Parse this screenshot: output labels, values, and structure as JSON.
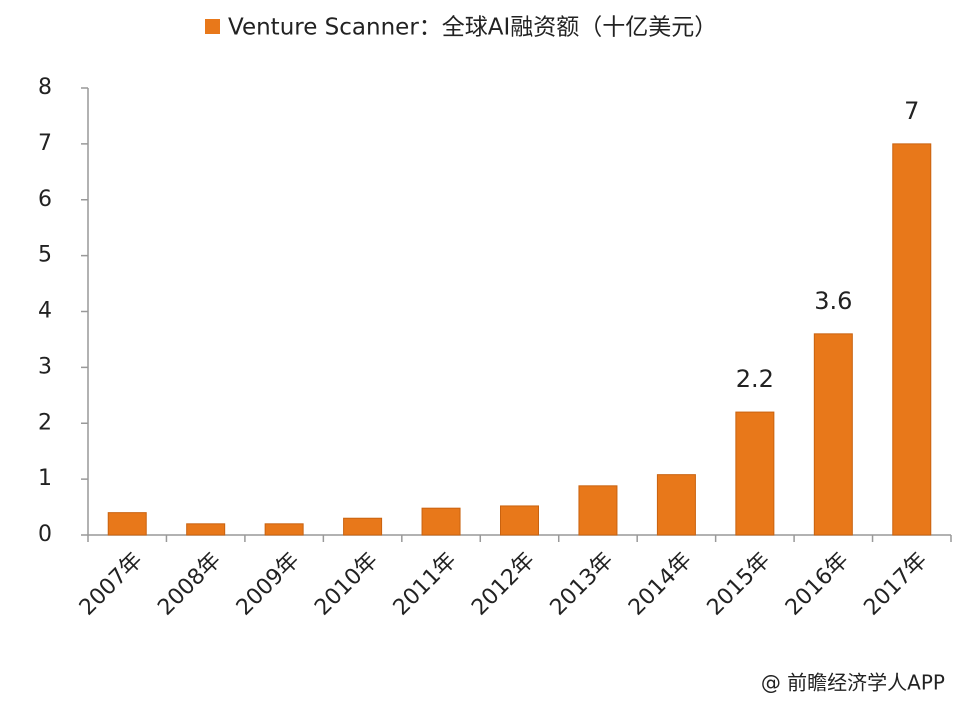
{
  "chart_data": {
    "type": "bar",
    "categories": [
      "2007年",
      "2008年",
      "2009年",
      "2010年",
      "2011年",
      "2012年",
      "2013年",
      "2014年",
      "2015年",
      "2016年",
      "2017年"
    ],
    "series": [
      {
        "name": "Venture Scanner：全球AI融资额（十亿美元）",
        "color": "#e8781a",
        "values": [
          0.4,
          0.2,
          0.2,
          0.3,
          0.48,
          0.52,
          0.88,
          1.08,
          2.2,
          3.6,
          7
        ],
        "value_labels": [
          null,
          null,
          null,
          null,
          null,
          null,
          null,
          null,
          "2.2",
          "3.6",
          "7"
        ]
      }
    ],
    "ylim": [
      0,
      8
    ],
    "yticks": [
      0,
      1,
      2,
      3,
      4,
      5,
      6,
      7,
      8
    ],
    "legend": "top",
    "source": "@ 前瞻经济学人APP"
  }
}
